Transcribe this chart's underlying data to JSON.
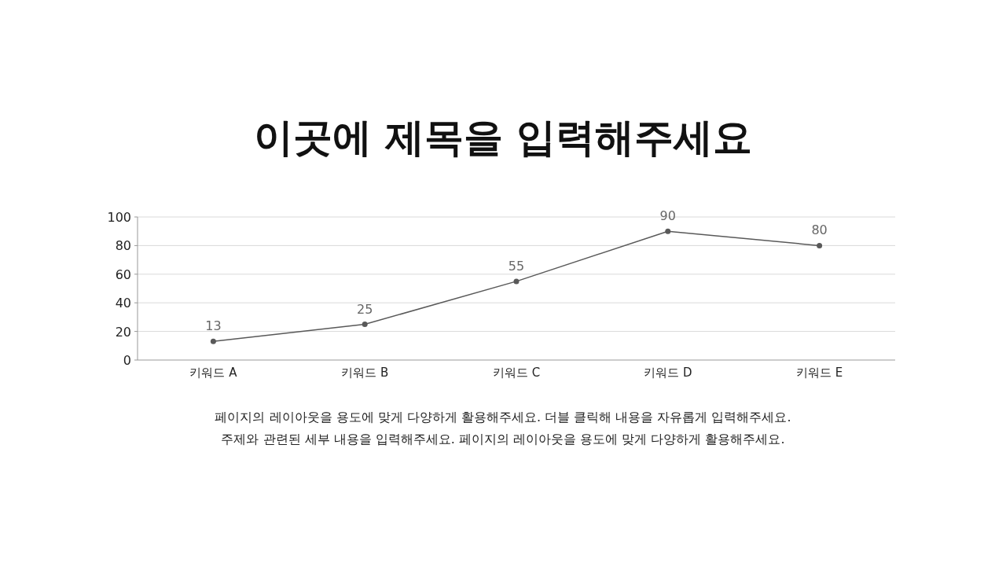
{
  "chart_data": {
    "type": "line",
    "title": "이곳에 제목을 입력해주세요",
    "categories": [
      "키워드 A",
      "키워드 B",
      "키워드 C",
      "키워드 D",
      "키워드 E"
    ],
    "values": [
      13,
      25,
      55,
      90,
      80
    ],
    "color": "#595959",
    "marker": "circle",
    "data_labels": true,
    "grid": "y",
    "ylim": [
      0,
      100
    ],
    "yticks": [
      0,
      20,
      40,
      60,
      80,
      100
    ],
    "annotations": [
      "페이지의 레이아웃을 용도에 맞게 다양하게 활용해주세요. 더블 클릭해 내용을 자유롭게 입력해주세요.",
      "주제와 관련된 세부 내용을 입력해주세요. 페이지의 레이아웃을 용도에 맞게 다양하게 활용해주세요."
    ]
  }
}
